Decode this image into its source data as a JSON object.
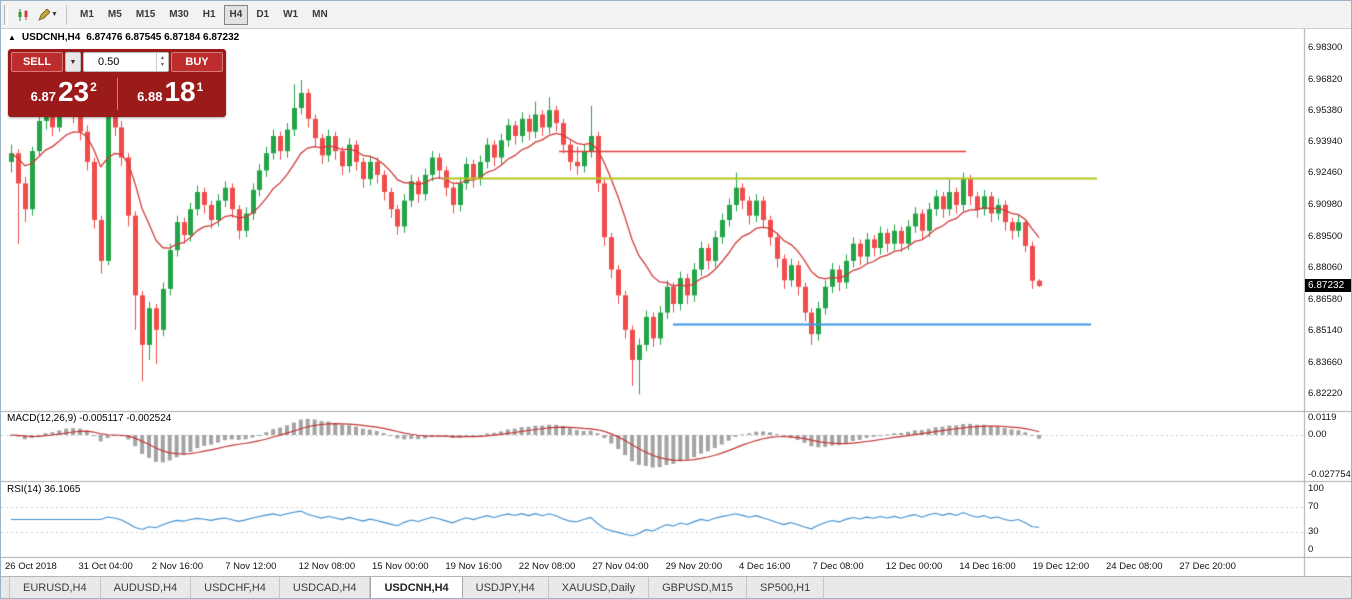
{
  "toolbar": {
    "timeframes": [
      "M1",
      "M5",
      "M15",
      "M30",
      "H1",
      "H4",
      "D1",
      "W1",
      "MN"
    ],
    "active_timeframe": "H4"
  },
  "chart": {
    "collapse_arrow": "▲",
    "symbol": "USDCNH,H4",
    "ohlc_text": "6.87476 6.87545 6.87184 6.87232",
    "current_price": "6.87232",
    "price_axis_labels": [
      "6.98300",
      "6.96820",
      "6.95380",
      "6.93940",
      "6.92460",
      "6.90980",
      "6.89500",
      "6.88060",
      "6.86580",
      "6.85140",
      "6.83660",
      "6.82220"
    ],
    "trade_panel": {
      "sell_label": "SELL",
      "buy_label": "BUY",
      "lot_size": "0.50",
      "dropdown_icon": "▼",
      "sell_price": {
        "prefix": "6.87",
        "pips": "23",
        "point": "2"
      },
      "buy_price": {
        "prefix": "6.88",
        "pips": "18",
        "point": "1"
      }
    }
  },
  "indicators": {
    "macd": {
      "label": "MACD(12,26,9) -0.005117 -0.002524",
      "axis_labels": [
        "0.0119",
        "0.00",
        "-0.027754"
      ],
      "fast": 12,
      "slow": 26,
      "signal": 9
    },
    "rsi": {
      "label": "RSI(14) 36.1065",
      "axis_labels": [
        "100",
        "70",
        "30",
        "0"
      ],
      "period": 14
    }
  },
  "tabs": [
    {
      "label": "EURUSD,H4",
      "active": false
    },
    {
      "label": "AUDUSD,H4",
      "active": false
    },
    {
      "label": "USDCHF,H4",
      "active": false
    },
    {
      "label": "USDCAD,H4",
      "active": false
    },
    {
      "label": "USDCNH,H4",
      "active": true
    },
    {
      "label": "USDJPY,H4",
      "active": false
    },
    {
      "label": "XAUUSD,Daily",
      "active": false
    },
    {
      "label": "GBPUSD,M15",
      "active": false
    },
    {
      "label": "SP500,H1",
      "active": false
    }
  ],
  "colors": {
    "bull": "#22a447",
    "bear": "#f14c4c",
    "ma_line": "#d03a3a",
    "macd_histogram": "#a4a4a4",
    "macd_signal": "#c43636",
    "rsi_line": "#3e8ed0",
    "badge_bg": "#000000",
    "trade_panel_bg": "#9b1b1b"
  },
  "chart_data": {
    "type": "candlestick",
    "symbol": "USDCNH",
    "timeframe": "H4",
    "ylim": [
      6.818,
      6.988
    ],
    "x_labels": [
      "26 Oct 2018",
      "31 Oct 04:00",
      "2 Nov 16:00",
      "7 Nov 12:00",
      "12 Nov 08:00",
      "15 Nov 00:00",
      "19 Nov 16:00",
      "22 Nov 08:00",
      "27 Nov 04:00",
      "29 Nov 20:00",
      "4 Dec 16:00",
      "7 Dec 08:00",
      "12 Dec 00:00",
      "14 Dec 16:00",
      "19 Dec 12:00",
      "24 Dec 08:00",
      "27 Dec 20:00"
    ],
    "trend_lines": [
      {
        "color": "#e03c3c",
        "width": 1.4,
        "price": 6.935,
        "x1": 558,
        "x2": 965
      },
      {
        "color": "#b6c41e",
        "width": 2,
        "price": 6.9225,
        "x1": 443,
        "x2": 1096
      },
      {
        "color": "#3b97e8",
        "width": 2,
        "price": 6.8547,
        "x1": 672,
        "x2": 1090
      }
    ],
    "moving_average_period": 12,
    "candles": [
      [
        6.93,
        6.938,
        6.925,
        6.934
      ],
      [
        6.934,
        6.936,
        6.892,
        6.92
      ],
      [
        6.92,
        6.923,
        6.902,
        6.908
      ],
      [
        6.908,
        6.937,
        6.905,
        6.935
      ],
      [
        6.935,
        6.952,
        6.933,
        6.949
      ],
      [
        6.949,
        6.956,
        6.945,
        6.953
      ],
      [
        6.953,
        6.955,
        6.942,
        6.946
      ],
      [
        6.946,
        6.957,
        6.944,
        6.954
      ],
      [
        6.954,
        6.963,
        6.951,
        6.958
      ],
      [
        6.958,
        6.96,
        6.948,
        6.951
      ],
      [
        6.951,
        6.954,
        6.94,
        6.944
      ],
      [
        6.944,
        6.947,
        6.926,
        6.93
      ],
      [
        6.93,
        6.932,
        6.899,
        6.903
      ],
      [
        6.903,
        6.905,
        6.878,
        6.884
      ],
      [
        6.884,
        6.957,
        6.882,
        6.953
      ],
      [
        6.953,
        6.956,
        6.942,
        6.946
      ],
      [
        6.946,
        6.949,
        6.928,
        6.932
      ],
      [
        6.932,
        6.934,
        6.9,
        6.905
      ],
      [
        6.905,
        6.907,
        6.852,
        6.868
      ],
      [
        6.868,
        6.87,
        6.828,
        6.845
      ],
      [
        6.845,
        6.865,
        6.838,
        6.862
      ],
      [
        6.862,
        6.864,
        6.836,
        6.852
      ],
      [
        6.852,
        6.874,
        6.849,
        6.871
      ],
      [
        6.871,
        6.892,
        6.868,
        6.889
      ],
      [
        6.889,
        6.905,
        6.886,
        6.902
      ],
      [
        6.902,
        6.904,
        6.892,
        6.896
      ],
      [
        6.896,
        6.911,
        6.893,
        6.908
      ],
      [
        6.908,
        6.919,
        6.905,
        6.916
      ],
      [
        6.916,
        6.918,
        6.906,
        6.91
      ],
      [
        6.91,
        6.912,
        6.899,
        6.903
      ],
      [
        6.903,
        6.915,
        6.9,
        6.912
      ],
      [
        6.912,
        6.921,
        6.909,
        6.918
      ],
      [
        6.918,
        6.92,
        6.904,
        6.908
      ],
      [
        6.908,
        6.91,
        6.894,
        6.898
      ],
      [
        6.898,
        6.909,
        6.895,
        6.906
      ],
      [
        6.906,
        6.92,
        6.903,
        6.917
      ],
      [
        6.917,
        6.929,
        6.914,
        6.926
      ],
      [
        6.926,
        6.937,
        6.923,
        6.934
      ],
      [
        6.934,
        6.945,
        6.931,
        6.942
      ],
      [
        6.942,
        6.944,
        6.931,
        6.935
      ],
      [
        6.935,
        6.948,
        6.932,
        6.945
      ],
      [
        6.945,
        6.966,
        6.942,
        6.955
      ],
      [
        6.955,
        6.968,
        6.952,
        6.962
      ],
      [
        6.962,
        6.964,
        6.946,
        6.95
      ],
      [
        6.95,
        6.952,
        6.937,
        6.941
      ],
      [
        6.941,
        6.943,
        6.929,
        6.933
      ],
      [
        6.933,
        6.945,
        6.93,
        6.942
      ],
      [
        6.942,
        6.944,
        6.931,
        6.935
      ],
      [
        6.935,
        6.937,
        6.924,
        6.928
      ],
      [
        6.928,
        6.941,
        6.925,
        6.938
      ],
      [
        6.938,
        6.94,
        6.926,
        6.93
      ],
      [
        6.93,
        6.932,
        6.918,
        6.922
      ],
      [
        6.922,
        6.933,
        6.919,
        6.93
      ],
      [
        6.93,
        6.932,
        6.92,
        6.924
      ],
      [
        6.924,
        6.926,
        6.912,
        6.916
      ],
      [
        6.916,
        6.918,
        6.904,
        6.908
      ],
      [
        6.908,
        6.91,
        6.896,
        6.9
      ],
      [
        6.9,
        6.915,
        6.897,
        6.912
      ],
      [
        6.912,
        6.924,
        6.909,
        6.921
      ],
      [
        6.921,
        6.923,
        6.911,
        6.915
      ],
      [
        6.915,
        6.927,
        6.912,
        6.924
      ],
      [
        6.924,
        6.935,
        6.921,
        6.932
      ],
      [
        6.932,
        6.934,
        6.922,
        6.926
      ],
      [
        6.926,
        6.928,
        6.914,
        6.918
      ],
      [
        6.918,
        6.92,
        6.906,
        6.91
      ],
      [
        6.91,
        6.923,
        6.907,
        6.92
      ],
      [
        6.92,
        6.932,
        6.917,
        6.929
      ],
      [
        6.929,
        6.931,
        6.918,
        6.922
      ],
      [
        6.922,
        6.933,
        6.919,
        6.93
      ],
      [
        6.93,
        6.941,
        6.927,
        6.938
      ],
      [
        6.938,
        6.94,
        6.928,
        6.932
      ],
      [
        6.932,
        6.943,
        6.929,
        6.94
      ],
      [
        6.94,
        6.95,
        6.937,
        6.947
      ],
      [
        6.947,
        6.949,
        6.938,
        6.942
      ],
      [
        6.942,
        6.953,
        6.939,
        6.95
      ],
      [
        6.95,
        6.952,
        6.94,
        6.944
      ],
      [
        6.944,
        6.958,
        6.941,
        6.952
      ],
      [
        6.952,
        6.954,
        6.942,
        6.946
      ],
      [
        6.946,
        6.96,
        6.943,
        6.954
      ],
      [
        6.954,
        6.956,
        6.944,
        6.948
      ],
      [
        6.948,
        6.95,
        6.934,
        6.938
      ],
      [
        6.938,
        6.94,
        6.926,
        6.93
      ],
      [
        6.93,
        6.937,
        6.924,
        6.928
      ],
      [
        6.928,
        6.938,
        6.925,
        6.935
      ],
      [
        6.935,
        6.956,
        6.932,
        6.942
      ],
      [
        6.942,
        6.944,
        6.916,
        6.92
      ],
      [
        6.92,
        6.922,
        6.891,
        6.895
      ],
      [
        6.895,
        6.897,
        6.876,
        6.88
      ],
      [
        6.88,
        6.882,
        6.864,
        6.868
      ],
      [
        6.868,
        6.87,
        6.848,
        6.852
      ],
      [
        6.852,
        6.854,
        6.826,
        6.838
      ],
      [
        6.838,
        6.848,
        6.822,
        6.845
      ],
      [
        6.845,
        6.861,
        6.842,
        6.858
      ],
      [
        6.858,
        6.86,
        6.844,
        6.848
      ],
      [
        6.848,
        6.863,
        6.845,
        6.86
      ],
      [
        6.86,
        6.875,
        6.857,
        6.872
      ],
      [
        6.872,
        6.874,
        6.86,
        6.864
      ],
      [
        6.864,
        6.879,
        6.861,
        6.876
      ],
      [
        6.876,
        6.878,
        6.864,
        6.868
      ],
      [
        6.868,
        6.883,
        6.865,
        6.88
      ],
      [
        6.88,
        6.893,
        6.877,
        6.89
      ],
      [
        6.89,
        6.892,
        6.88,
        6.884
      ],
      [
        6.884,
        6.898,
        6.881,
        6.895
      ],
      [
        6.895,
        6.906,
        6.892,
        6.903
      ],
      [
        6.903,
        6.913,
        6.9,
        6.91
      ],
      [
        6.91,
        6.925,
        6.907,
        6.918
      ],
      [
        6.918,
        6.92,
        6.908,
        6.912
      ],
      [
        6.912,
        6.914,
        6.901,
        6.905
      ],
      [
        6.905,
        6.915,
        6.902,
        6.912
      ],
      [
        6.912,
        6.914,
        6.899,
        6.903
      ],
      [
        6.903,
        6.905,
        6.891,
        6.895
      ],
      [
        6.895,
        6.897,
        6.881,
        6.885
      ],
      [
        6.885,
        6.887,
        6.871,
        6.875
      ],
      [
        6.875,
        6.885,
        6.872,
        6.882
      ],
      [
        6.882,
        6.884,
        6.868,
        6.872
      ],
      [
        6.872,
        6.874,
        6.856,
        6.86
      ],
      [
        6.86,
        6.862,
        6.845,
        6.85
      ],
      [
        6.85,
        6.865,
        6.847,
        6.862
      ],
      [
        6.862,
        6.875,
        6.859,
        6.872
      ],
      [
        6.872,
        6.883,
        6.869,
        6.88
      ],
      [
        6.88,
        6.882,
        6.87,
        6.874
      ],
      [
        6.874,
        6.887,
        6.871,
        6.884
      ],
      [
        6.884,
        6.895,
        6.881,
        6.892
      ],
      [
        6.892,
        6.894,
        6.882,
        6.886
      ],
      [
        6.886,
        6.897,
        6.883,
        6.894
      ],
      [
        6.894,
        6.896,
        6.886,
        6.89
      ],
      [
        6.89,
        6.9,
        6.887,
        6.897
      ],
      [
        6.897,
        6.899,
        6.888,
        6.892
      ],
      [
        6.892,
        6.901,
        6.889,
        6.898
      ],
      [
        6.898,
        6.9,
        6.888,
        6.892
      ],
      [
        6.892,
        6.903,
        6.889,
        6.9
      ],
      [
        6.9,
        6.909,
        6.897,
        6.906
      ],
      [
        6.906,
        6.908,
        6.894,
        6.898
      ],
      [
        6.898,
        6.911,
        6.895,
        6.908
      ],
      [
        6.908,
        6.917,
        6.905,
        6.914
      ],
      [
        6.914,
        6.916,
        6.904,
        6.908
      ],
      [
        6.908,
        6.922,
        6.905,
        6.916
      ],
      [
        6.916,
        6.918,
        6.906,
        6.91
      ],
      [
        6.91,
        6.925,
        6.907,
        6.922
      ],
      [
        6.922,
        6.924,
        6.91,
        6.914
      ],
      [
        6.914,
        6.916,
        6.904,
        6.908
      ],
      [
        6.908,
        6.917,
        6.905,
        6.914
      ],
      [
        6.914,
        6.916,
        6.902,
        6.906
      ],
      [
        6.906,
        6.913,
        6.903,
        6.91
      ],
      [
        6.91,
        6.912,
        6.898,
        6.902
      ],
      [
        6.902,
        6.904,
        6.894,
        6.898
      ],
      [
        6.898,
        6.905,
        6.895,
        6.902
      ],
      [
        6.902,
        6.903,
        6.888,
        6.891
      ],
      [
        6.891,
        6.893,
        6.871,
        6.8748
      ],
      [
        6.8748,
        6.87545,
        6.87184,
        6.87232
      ]
    ]
  }
}
